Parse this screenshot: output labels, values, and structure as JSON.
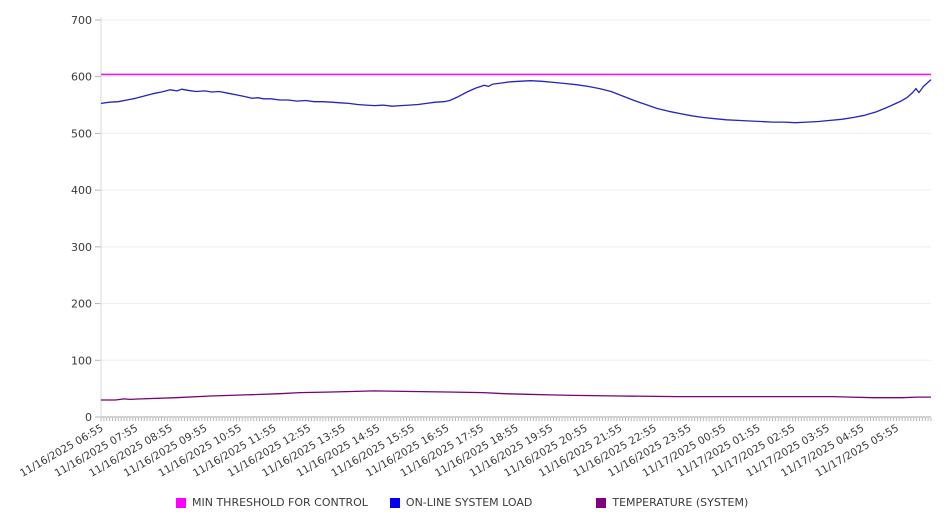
{
  "chart_data": {
    "type": "line",
    "title": "",
    "xlabel": "",
    "ylabel": "",
    "grid": "horizontal",
    "legend_position": "bottom",
    "y_axis": {
      "min": 0,
      "max": 700,
      "tick_step": 100
    },
    "x_axis": {
      "total_minutes": 1440,
      "minor_tick_minutes": 5,
      "hour_label_step_minutes": 60,
      "labels": [
        "11/16/2025 06:55",
        "11/16/2025 07:55",
        "11/16/2025 08:55",
        "11/16/2025 09:55",
        "11/16/2025 10:55",
        "11/16/2025 11:55",
        "11/16/2025 12:55",
        "11/16/2025 13:55",
        "11/16/2025 14:55",
        "11/16/2025 15:55",
        "11/16/2025 16:55",
        "11/16/2025 17:55",
        "11/16/2025 18:55",
        "11/16/2025 19:55",
        "11/16/2025 20:55",
        "11/16/2025 21:55",
        "11/16/2025 22:55",
        "11/16/2025 23:55",
        "11/17/2025 00:55",
        "11/17/2025 01:55",
        "11/17/2025 02:55",
        "11/17/2025 03:55",
        "11/17/2025 04:55",
        "11/17/2025 05:55"
      ]
    },
    "series": [
      {
        "name": "MIN THRESHOLD FOR CONTROL",
        "kind": "threshold",
        "swatch_color": "#ff00ff",
        "line_color": "#e81ce8",
        "value": 604
      },
      {
        "name": "ON-LINE SYSTEM LOAD",
        "kind": "line",
        "swatch_color": "#0000ee",
        "line_color": "#2424bf",
        "points": [
          [
            0,
            553
          ],
          [
            15,
            555
          ],
          [
            30,
            556
          ],
          [
            45,
            559
          ],
          [
            60,
            562
          ],
          [
            75,
            566
          ],
          [
            90,
            570
          ],
          [
            105,
            573
          ],
          [
            120,
            577
          ],
          [
            132,
            575
          ],
          [
            140,
            578
          ],
          [
            150,
            576
          ],
          [
            165,
            574
          ],
          [
            180,
            575
          ],
          [
            192,
            573
          ],
          [
            205,
            574
          ],
          [
            220,
            571
          ],
          [
            235,
            568
          ],
          [
            250,
            565
          ],
          [
            262,
            562
          ],
          [
            272,
            563
          ],
          [
            282,
            561
          ],
          [
            295,
            561
          ],
          [
            310,
            559
          ],
          [
            325,
            559
          ],
          [
            340,
            557
          ],
          [
            355,
            558
          ],
          [
            370,
            556
          ],
          [
            385,
            556
          ],
          [
            400,
            555
          ],
          [
            415,
            554
          ],
          [
            430,
            553
          ],
          [
            445,
            551
          ],
          [
            460,
            550
          ],
          [
            475,
            549
          ],
          [
            490,
            550
          ],
          [
            505,
            548
          ],
          [
            520,
            549
          ],
          [
            535,
            550
          ],
          [
            550,
            551
          ],
          [
            565,
            553
          ],
          [
            580,
            555
          ],
          [
            595,
            556
          ],
          [
            605,
            558
          ],
          [
            620,
            565
          ],
          [
            635,
            573
          ],
          [
            650,
            580
          ],
          [
            665,
            585
          ],
          [
            672,
            583
          ],
          [
            680,
            587
          ],
          [
            695,
            589
          ],
          [
            710,
            591
          ],
          [
            725,
            592
          ],
          [
            745,
            593
          ],
          [
            765,
            592
          ],
          [
            785,
            590
          ],
          [
            805,
            588
          ],
          [
            825,
            586
          ],
          [
            845,
            583
          ],
          [
            865,
            579
          ],
          [
            885,
            574
          ],
          [
            905,
            566
          ],
          [
            925,
            558
          ],
          [
            945,
            551
          ],
          [
            965,
            544
          ],
          [
            985,
            539
          ],
          [
            1005,
            535
          ],
          [
            1025,
            531
          ],
          [
            1045,
            528
          ],
          [
            1065,
            526
          ],
          [
            1085,
            524
          ],
          [
            1105,
            523
          ],
          [
            1125,
            522
          ],
          [
            1145,
            521
          ],
          [
            1165,
            520
          ],
          [
            1185,
            520
          ],
          [
            1205,
            519
          ],
          [
            1225,
            520
          ],
          [
            1245,
            521
          ],
          [
            1265,
            523
          ],
          [
            1285,
            525
          ],
          [
            1305,
            528
          ],
          [
            1325,
            532
          ],
          [
            1345,
            538
          ],
          [
            1362,
            545
          ],
          [
            1375,
            551
          ],
          [
            1388,
            557
          ],
          [
            1398,
            563
          ],
          [
            1408,
            572
          ],
          [
            1414,
            579
          ],
          [
            1419,
            572
          ],
          [
            1427,
            583
          ],
          [
            1440,
            595
          ]
        ]
      },
      {
        "name": "TEMPERATURE (SYSTEM)",
        "kind": "line",
        "swatch_color": "#800080",
        "line_color": "#730473",
        "points": [
          [
            0,
            30
          ],
          [
            25,
            30
          ],
          [
            40,
            32
          ],
          [
            50,
            31
          ],
          [
            70,
            32
          ],
          [
            130,
            34
          ],
          [
            190,
            37
          ],
          [
            250,
            39
          ],
          [
            310,
            41
          ],
          [
            345,
            43
          ],
          [
            400,
            44
          ],
          [
            475,
            46
          ],
          [
            540,
            45
          ],
          [
            600,
            44
          ],
          [
            663,
            43
          ],
          [
            700,
            41
          ],
          [
            740,
            40
          ],
          [
            780,
            39
          ],
          [
            820,
            38
          ],
          [
            900,
            37
          ],
          [
            1000,
            36
          ],
          [
            1100,
            36
          ],
          [
            1200,
            36
          ],
          [
            1270,
            36
          ],
          [
            1300,
            35
          ],
          [
            1340,
            34
          ],
          [
            1390,
            34
          ],
          [
            1415,
            35
          ],
          [
            1440,
            35
          ]
        ]
      }
    ],
    "colors": {
      "axis_line": "#a6a6a6",
      "y_axis_line": "#d9d9d9",
      "grid_line": "#ededed",
      "tick_mark": "#b5b5b5",
      "tick_label": "#3a3a3a"
    }
  }
}
